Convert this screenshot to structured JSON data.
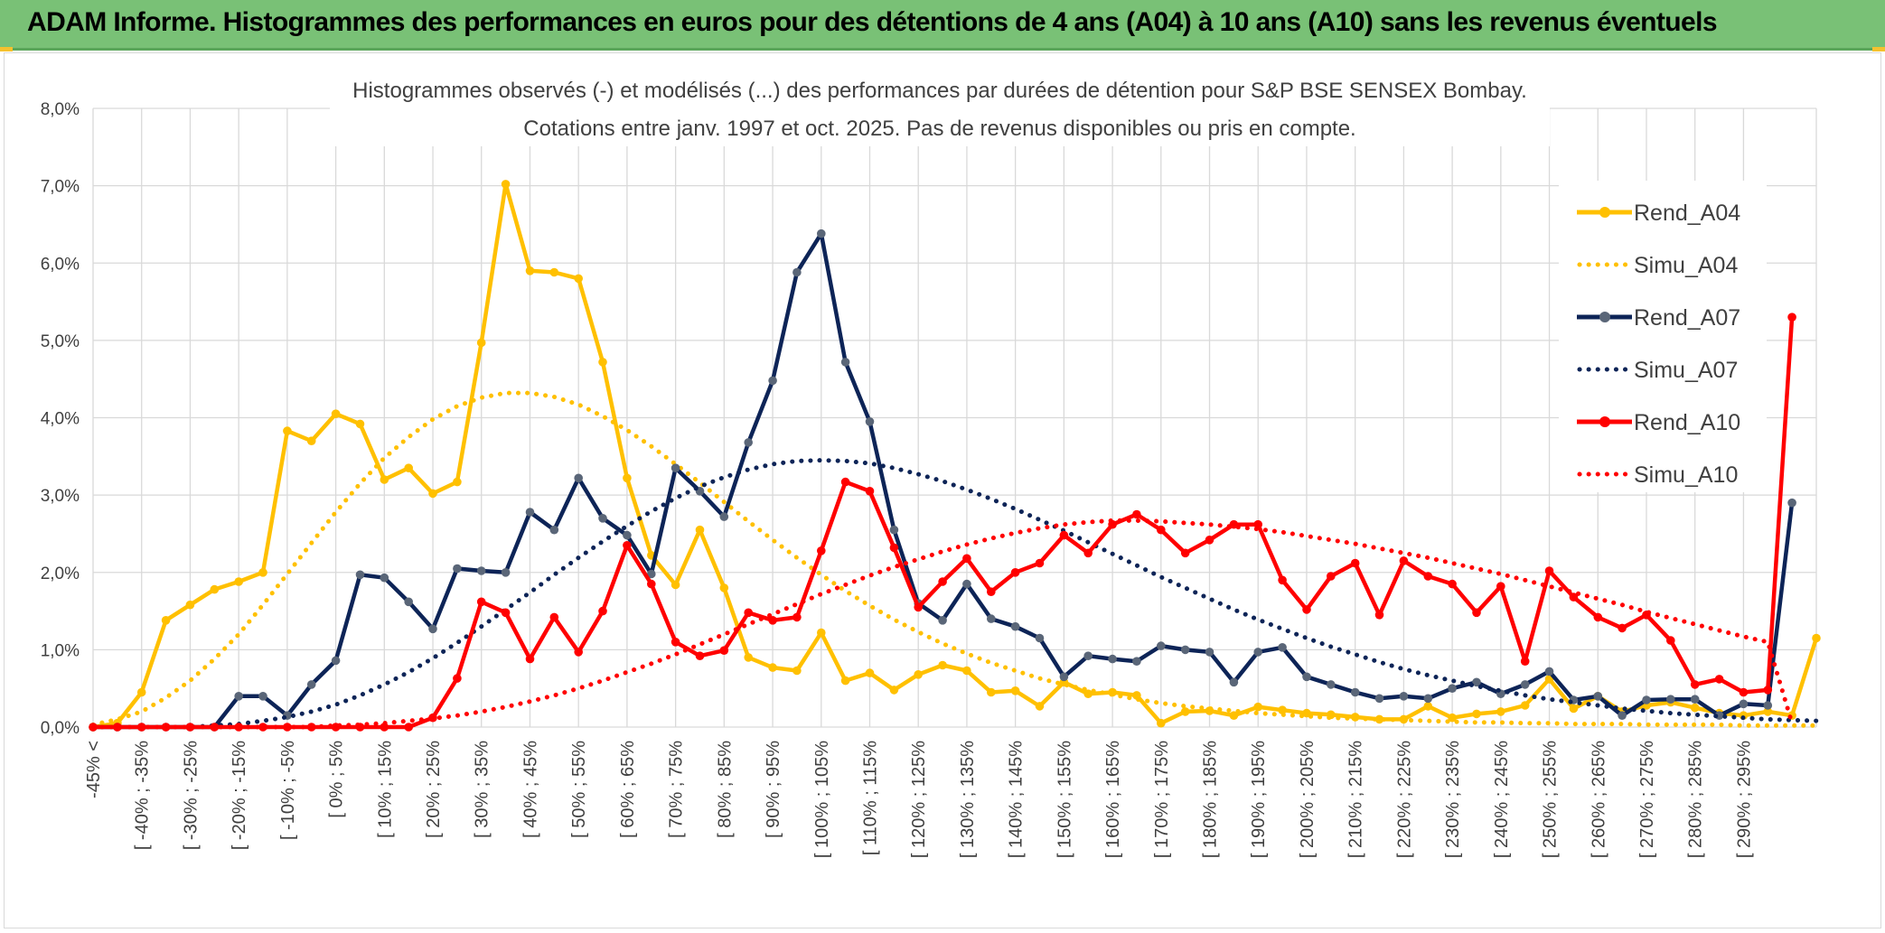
{
  "header": {
    "title": "ADAM Informe. Histogrammes des performances en euros pour des détentions de 4 ans (A04) à 10 ans (A10) sans les revenus éventuels"
  },
  "colors": {
    "header_bg": "#79c176",
    "grid": "#d9d9d9",
    "A04": "#ffc000",
    "A07": "#0d2457",
    "A07_marker": "#5a6678",
    "A10": "#ff0000"
  },
  "chart_data": {
    "type": "line",
    "title_line1": "Histogrammes observés (-) et modélisés (...) des performances par durées de détention pour S&P BSE SENSEX Bombay.",
    "title_line2": "Cotations entre janv. 1997 et oct. 2025. Pas de revenus disponibles ou pris en compte.",
    "ylim": [
      0,
      8
    ],
    "y_ticks": [
      "0,0%",
      "1,0%",
      "2,0%",
      "3,0%",
      "4,0%",
      "5,0%",
      "6,0%",
      "7,0%",
      "8,0%"
    ],
    "x_tick_labels": [
      "-45% <",
      "[ -40% ; -35%",
      "[ -30% ; -25%",
      "[ -20% ; -15%",
      "[ -10% ; -5%",
      "[ 0% ; 5%",
      "[ 10% ; 15%",
      "[ 20% ; 25%",
      "[ 30% ; 35%",
      "[ 40% ; 45%",
      "[ 50% ; 55%",
      "[ 60% ; 65%",
      "[ 70% ; 75%",
      "[ 80% ; 85%",
      "[ 90% ; 95%",
      "[ 100% ; 105%",
      "[ 110% ; 115%",
      "[ 120% ; 125%",
      "[ 130% ; 135%",
      "[ 140% ; 145%",
      "[ 150% ; 155%",
      "[ 160% ; 165%",
      "[ 170% ; 175%",
      "[ 180% ; 185%",
      "[ 190% ; 195%",
      "[ 200% ; 205%",
      "[ 210% ; 215%",
      "[ 220% ; 225%",
      "[ 230% ; 235%",
      "[ 240% ; 245%",
      "[ 250% ; 255%",
      "[ 260% ; 265%",
      "[ 270% ; 275%",
      "[ 280% ; 285%",
      "[ 290% ; 295%"
    ],
    "series": [
      {
        "name": "Rend_A04",
        "style": "solid",
        "color": "#ffc000",
        "values": [
          0.0,
          0.05,
          0.45,
          1.38,
          1.58,
          1.78,
          1.88,
          2.0,
          3.83,
          3.7,
          4.05,
          3.92,
          3.2,
          3.35,
          3.02,
          3.17,
          4.97,
          7.02,
          5.9,
          5.88,
          5.8,
          4.72,
          3.22,
          2.22,
          1.84,
          2.55,
          1.8,
          0.9,
          0.77,
          0.73,
          1.22,
          0.6,
          0.7,
          0.48,
          0.68,
          0.8,
          0.73,
          0.45,
          0.47,
          0.27,
          0.58,
          0.43,
          0.45,
          0.41,
          0.05,
          0.2,
          0.21,
          0.15,
          0.26,
          0.22,
          0.18,
          0.16,
          0.13,
          0.1,
          0.1,
          0.27,
          0.12,
          0.17,
          0.2,
          0.28,
          0.62,
          0.24,
          0.4,
          0.2,
          0.28,
          0.32,
          0.25,
          0.18,
          0.15,
          0.2,
          0.15,
          1.15
        ]
      },
      {
        "name": "Simu_A04",
        "style": "dotted",
        "color": "#ffc000",
        "values": [
          0.03,
          0.1,
          0.2,
          0.38,
          0.6,
          0.88,
          1.2,
          1.58,
          1.98,
          2.38,
          2.78,
          3.15,
          3.48,
          3.75,
          3.98,
          4.15,
          4.26,
          4.32,
          4.32,
          4.27,
          4.17,
          4.02,
          3.84,
          3.63,
          3.4,
          3.16,
          2.91,
          2.66,
          2.42,
          2.19,
          1.97,
          1.76,
          1.57,
          1.39,
          1.23,
          1.08,
          0.95,
          0.83,
          0.73,
          0.63,
          0.55,
          0.48,
          0.42,
          0.36,
          0.31,
          0.27,
          0.24,
          0.21,
          0.18,
          0.16,
          0.14,
          0.12,
          0.11,
          0.1,
          0.09,
          0.08,
          0.07,
          0.06,
          0.06,
          0.05,
          0.05,
          0.04,
          0.04,
          0.04,
          0.03,
          0.03,
          0.03,
          0.03,
          0.02,
          0.02,
          0.02,
          0.02
        ]
      },
      {
        "name": "Rend_A07",
        "style": "solid",
        "color": "#0d2457",
        "values": [
          0.0,
          0.0,
          0.0,
          0.0,
          0.0,
          0.0,
          0.4,
          0.4,
          0.15,
          0.55,
          0.86,
          1.97,
          1.93,
          1.62,
          1.27,
          2.05,
          2.02,
          2.0,
          2.78,
          2.55,
          3.22,
          2.7,
          2.48,
          1.98,
          3.35,
          3.05,
          2.72,
          3.68,
          4.48,
          5.88,
          6.38,
          4.72,
          3.95,
          2.55,
          1.6,
          1.38,
          1.85,
          1.4,
          1.3,
          1.15,
          0.65,
          0.92,
          0.88,
          0.85,
          1.05,
          1.0,
          0.97,
          0.58,
          0.97,
          1.03,
          0.65,
          0.55,
          0.45,
          0.37,
          0.4,
          0.37,
          0.5,
          0.58,
          0.43,
          0.55,
          0.72,
          0.35,
          0.4,
          0.15,
          0.35,
          0.36,
          0.36,
          0.15,
          0.3,
          0.28,
          2.9
        ]
      },
      {
        "name": "Simu_A07",
        "style": "dotted",
        "color": "#0d2457",
        "values": [
          0.0,
          0.0,
          0.0,
          0.0,
          0.0,
          0.02,
          0.04,
          0.08,
          0.13,
          0.2,
          0.29,
          0.41,
          0.55,
          0.71,
          0.89,
          1.09,
          1.3,
          1.52,
          1.74,
          1.97,
          2.19,
          2.4,
          2.6,
          2.79,
          2.96,
          3.11,
          3.23,
          3.33,
          3.4,
          3.44,
          3.45,
          3.44,
          3.41,
          3.35,
          3.27,
          3.18,
          3.07,
          2.95,
          2.82,
          2.68,
          2.54,
          2.39,
          2.24,
          2.09,
          1.94,
          1.8,
          1.66,
          1.52,
          1.39,
          1.27,
          1.15,
          1.04,
          0.94,
          0.84,
          0.75,
          0.67,
          0.6,
          0.53,
          0.47,
          0.41,
          0.36,
          0.32,
          0.28,
          0.24,
          0.21,
          0.18,
          0.16,
          0.14,
          0.12,
          0.1,
          0.09,
          0.08
        ]
      },
      {
        "name": "Rend_A10",
        "style": "solid",
        "color": "#ff0000",
        "values": [
          0.0,
          0.0,
          0.0,
          0.0,
          0.0,
          0.0,
          0.0,
          0.0,
          0.0,
          0.0,
          0.0,
          0.0,
          0.0,
          0.0,
          0.12,
          0.63,
          1.62,
          1.48,
          0.88,
          1.42,
          0.97,
          1.5,
          2.35,
          1.85,
          1.1,
          0.92,
          0.99,
          1.48,
          1.38,
          1.42,
          2.28,
          3.17,
          3.05,
          2.32,
          1.55,
          1.88,
          2.18,
          1.75,
          2.0,
          2.12,
          2.48,
          2.25,
          2.62,
          2.75,
          2.55,
          2.25,
          2.42,
          2.62,
          2.62,
          1.9,
          1.52,
          1.95,
          2.12,
          1.45,
          2.15,
          1.95,
          1.85,
          1.48,
          1.82,
          0.85,
          2.02,
          1.68,
          1.42,
          1.28,
          1.45,
          1.12,
          0.55,
          0.62,
          0.45,
          0.48,
          5.3
        ]
      },
      {
        "name": "Simu_A10",
        "style": "dotted",
        "color": "#ff0000",
        "values": [
          0.0,
          0.0,
          0.0,
          0.0,
          0.0,
          0.0,
          0.0,
          0.0,
          0.0,
          0.0,
          0.02,
          0.03,
          0.05,
          0.08,
          0.11,
          0.15,
          0.2,
          0.26,
          0.33,
          0.41,
          0.5,
          0.6,
          0.71,
          0.82,
          0.94,
          1.07,
          1.2,
          1.33,
          1.46,
          1.59,
          1.72,
          1.84,
          1.96,
          2.07,
          2.17,
          2.27,
          2.36,
          2.44,
          2.51,
          2.57,
          2.62,
          2.65,
          2.67,
          2.67,
          2.66,
          2.64,
          2.62,
          2.59,
          2.56,
          2.52,
          2.47,
          2.42,
          2.37,
          2.31,
          2.25,
          2.19,
          2.12,
          2.05,
          1.98,
          1.9,
          1.82,
          1.74,
          1.66,
          1.58,
          1.49,
          1.41,
          1.33,
          1.25,
          1.17,
          1.1,
          0.05
        ]
      }
    ]
  }
}
